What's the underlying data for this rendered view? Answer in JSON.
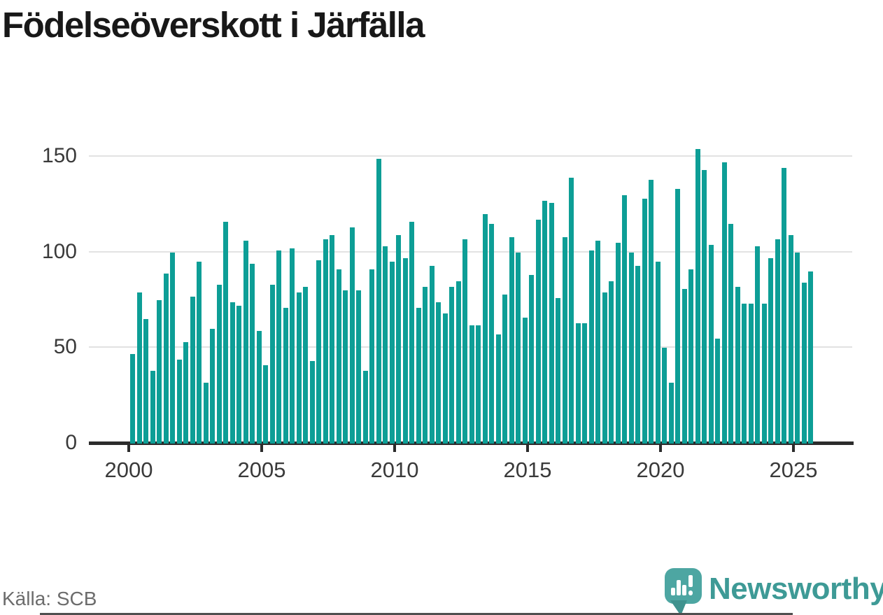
{
  "title": "Födelseöverskott i Järfälla",
  "source": {
    "label": "Källa: SCB"
  },
  "branding": {
    "wordmark": "Newsworthy",
    "logo_icon": "speech-bubble-bar-chart-icon",
    "wordmark_color": "#3e9a96",
    "mark_color": "#4da6a2",
    "mark_tail_color": "#3f928e"
  },
  "chart_data": {
    "type": "bar",
    "title": "Födelseöverskott i Järfälla",
    "x_unit": "quarter",
    "start_period": "2000 Q1",
    "end_period": "2025 Q3",
    "periods_per_year": 4,
    "bar_color": "#0d9e96",
    "grid": "horizontal",
    "ylim": [
      0,
      160
    ],
    "yticks": [
      0,
      50,
      100,
      150
    ],
    "ytick_labels": [
      "0",
      "50",
      "100",
      "150"
    ],
    "xticks": [
      2000,
      2005,
      2010,
      2015,
      2020,
      2025
    ],
    "xtick_labels": [
      "2000",
      "2005",
      "2010",
      "2015",
      "2020",
      "2025"
    ],
    "values": [
      47,
      79,
      65,
      38,
      75,
      89,
      100,
      44,
      53,
      77,
      95,
      32,
      60,
      83,
      116,
      74,
      72,
      106,
      94,
      59,
      41,
      83,
      101,
      71,
      102,
      79,
      82,
      43,
      96,
      107,
      109,
      91,
      80,
      113,
      80,
      38,
      91,
      149,
      103,
      95,
      109,
      97,
      116,
      71,
      82,
      93,
      74,
      68,
      82,
      85,
      107,
      62,
      62,
      120,
      115,
      57,
      78,
      108,
      100,
      66,
      88,
      117,
      127,
      126,
      76,
      108,
      139,
      63,
      63,
      101,
      106,
      79,
      85,
      105,
      130,
      100,
      93,
      128,
      138,
      95,
      50,
      32,
      133,
      81,
      91,
      154,
      143,
      104,
      55,
      147,
      115,
      82,
      73,
      73,
      103,
      73,
      97,
      107,
      144,
      109,
      100,
      84,
      90
    ]
  }
}
